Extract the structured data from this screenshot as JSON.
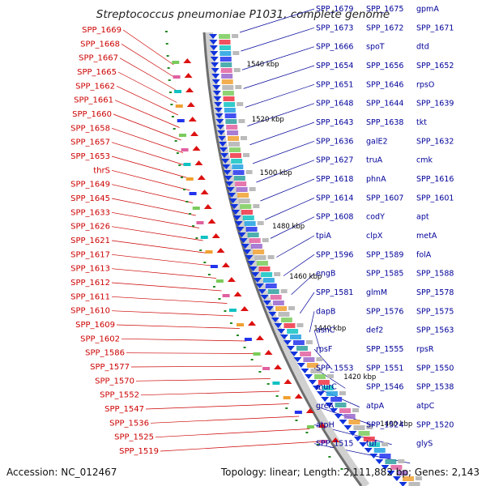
{
  "title": "Streptococcus pneumoniae P1031, complete genome",
  "accession": "Accession: NC_012467",
  "topology": "Topology: linear; Length: 2,111,882 bp; Genes: 2,143",
  "colors": {
    "left_labels": "#cc0000",
    "right_labels": "#000099",
    "kbp": "#000000"
  },
  "kbp_marks": [
    "1540 kbp",
    "1520 kbp",
    "1500 kbp",
    "1480 kbp",
    "1460 kbp",
    "1440 kbp",
    "1420 kbp",
    "1400 kbp"
  ],
  "left_labels": [
    "SPP_1669",
    "SPP_1668",
    "SPP_1667",
    "SPP_1665",
    "SPP_1662",
    "SPP_1661",
    "SPP_1660",
    "SPP_1658",
    "SPP_1657",
    "SPP_1653",
    "thrS",
    "SPP_1649",
    "SPP_1645",
    "SPP_1633",
    "SPP_1626",
    "SPP_1621",
    "SPP_1617",
    "SPP_1613",
    "SPP_1612",
    "SPP_1611",
    "SPP_1610",
    "SPP_1609",
    "SPP_1602",
    "SPP_1586",
    "SPP_1577",
    "SPP_1570",
    "SPP_1552",
    "SPP_1547",
    "SPP_1536",
    "SPP_1525",
    "SPP_1519"
  ],
  "right_labels": [
    "SPP_1679",
    "SPP_1675",
    "gpmA",
    "SPP_1673",
    "SPP_1672",
    "SPP_1671",
    "SPP_1666",
    "spoT",
    "dtd",
    "SPP_1654",
    "SPP_1656",
    "SPP_1652",
    "SPP_1651",
    "SPP_1646",
    "rpsO",
    "SPP_1648",
    "SPP_1644",
    "SPP_1639",
    "SPP_1643",
    "SPP_1638",
    "tkt",
    "SPP_1636",
    "galE2",
    "SPP_1632",
    "SPP_1627",
    "truA",
    "cmk",
    "SPP_1618",
    "phnA",
    "SPP_1616",
    "SPP_1614",
    "SPP_1607",
    "SPP_1601",
    "SPP_1608",
    "codY",
    "apt",
    "tpiA",
    "clpX",
    "metA",
    "SPP_1596",
    "SPP_1589",
    "folA",
    "engB",
    "SPP_1585",
    "SPP_1588",
    "SPP_1581",
    "glmM",
    "SPP_1578",
    "dapB",
    "SPP_1576",
    "SPP_1575",
    "asnC",
    "def2",
    "SPP_1563",
    "rpsF",
    "SPP_1555",
    "rpsR",
    "SPP_1553",
    "SPP_1551",
    "SPP_1550",
    "murC",
    "SPP_1546",
    "SPP_1538",
    "greA",
    "atpA",
    "atpC",
    "atpH",
    "SPP_1524",
    "SPP_1520",
    "SPP_1515",
    "tuf",
    "glyS"
  ]
}
